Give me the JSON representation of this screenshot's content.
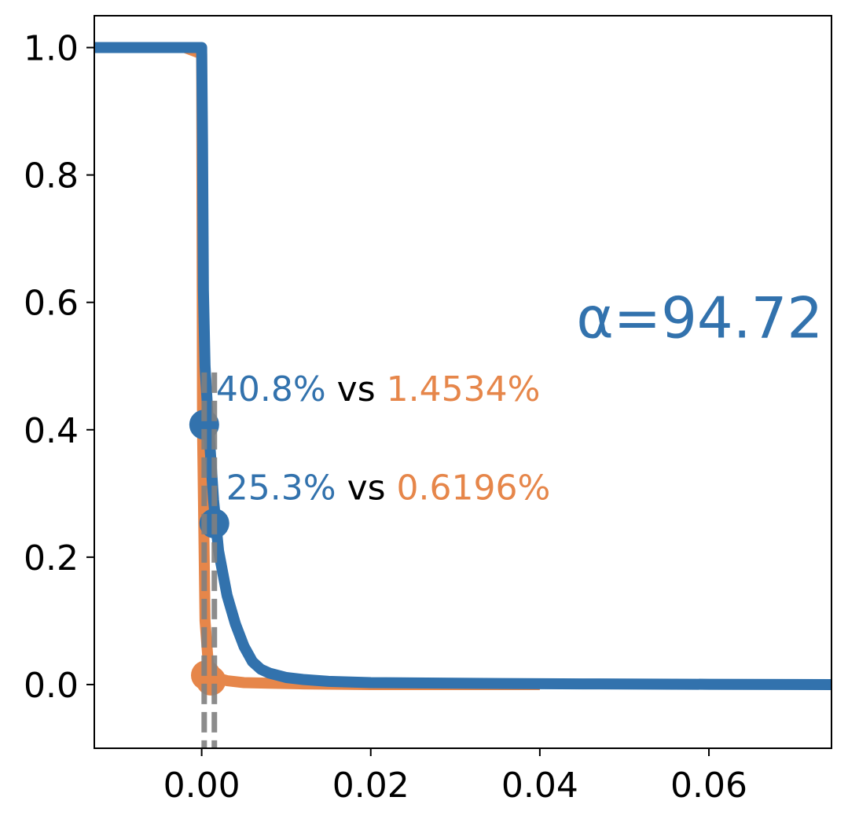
{
  "chart_data": {
    "type": "line",
    "title": "",
    "xlabel": "",
    "ylabel": "",
    "xlim": [
      -0.0127,
      0.0745
    ],
    "ylim": [
      -0.1,
      1.05
    ],
    "grid": false,
    "x_ticks": [
      {
        "value": 0.0,
        "label": "0.00"
      },
      {
        "value": 0.02,
        "label": "0.02"
      },
      {
        "value": 0.04,
        "label": "0.04"
      },
      {
        "value": 0.06,
        "label": "0.06"
      }
    ],
    "y_ticks": [
      {
        "value": 0.0,
        "label": "0.0"
      },
      {
        "value": 0.2,
        "label": "0.2"
      },
      {
        "value": 0.4,
        "label": "0.4"
      },
      {
        "value": 0.6,
        "label": "0.6"
      },
      {
        "value": 0.8,
        "label": "0.8"
      },
      {
        "value": 1.0,
        "label": "1.0"
      }
    ],
    "series": [
      {
        "color": "#e6864a",
        "x": [
          -0.0127,
          -0.002,
          0.0,
          0.0001,
          0.0004,
          0.0008,
          0.0012,
          0.002,
          0.003,
          0.005,
          0.008,
          0.012,
          0.02,
          0.04
        ],
        "y": [
          1.0,
          1.0,
          0.99,
          0.4,
          0.1,
          0.03,
          0.015,
          0.01,
          0.006,
          0.003,
          0.002,
          0.001,
          0.0,
          0.0
        ]
      },
      {
        "color": "#3272ad",
        "x": [
          -0.0127,
          -0.005,
          0.0,
          0.0001,
          0.0002,
          0.0004,
          0.0008,
          0.0014,
          0.002,
          0.003,
          0.004,
          0.005,
          0.006,
          0.007,
          0.008,
          0.01,
          0.012,
          0.015,
          0.02,
          0.03,
          0.045,
          0.06,
          0.0745
        ],
        "y": [
          1.0,
          1.0,
          1.0,
          0.85,
          0.62,
          0.5,
          0.41,
          0.29,
          0.21,
          0.14,
          0.095,
          0.06,
          0.036,
          0.024,
          0.018,
          0.011,
          0.008,
          0.005,
          0.003,
          0.002,
          0.001,
          0.0005,
          0.0
        ]
      }
    ],
    "markers": [
      {
        "x": 0.0003,
        "y": 0.408,
        "color": "#3272ad"
      },
      {
        "x": 0.0015,
        "y": 0.253,
        "color": "#3272ad"
      },
      {
        "x": 0.0005,
        "y": 0.0145,
        "color": "#e6864a"
      },
      {
        "x": 0.0011,
        "y": 0.0062,
        "color": "#e6864a"
      }
    ],
    "vlines": [
      0.0003,
      0.0015
    ],
    "vline_color": "#808080",
    "annotations": [
      {
        "x": 0.0017,
        "y": 0.465,
        "parts": [
          {
            "text": "40.8%",
            "color": "#3272ad"
          },
          {
            "text": " vs ",
            "color": "#000000"
          },
          {
            "text": "1.4534%",
            "color": "#e6864a"
          }
        ]
      },
      {
        "x": 0.0029,
        "y": 0.31,
        "parts": [
          {
            "text": "25.3%",
            "color": "#3272ad"
          },
          {
            "text": " vs ",
            "color": "#000000"
          },
          {
            "text": "0.6196%",
            "color": "#e6864a"
          }
        ]
      }
    ],
    "alpha_label": {
      "text": "α=94.72",
      "color": "#3272ad",
      "x": 0.0735,
      "y": 0.545
    }
  }
}
